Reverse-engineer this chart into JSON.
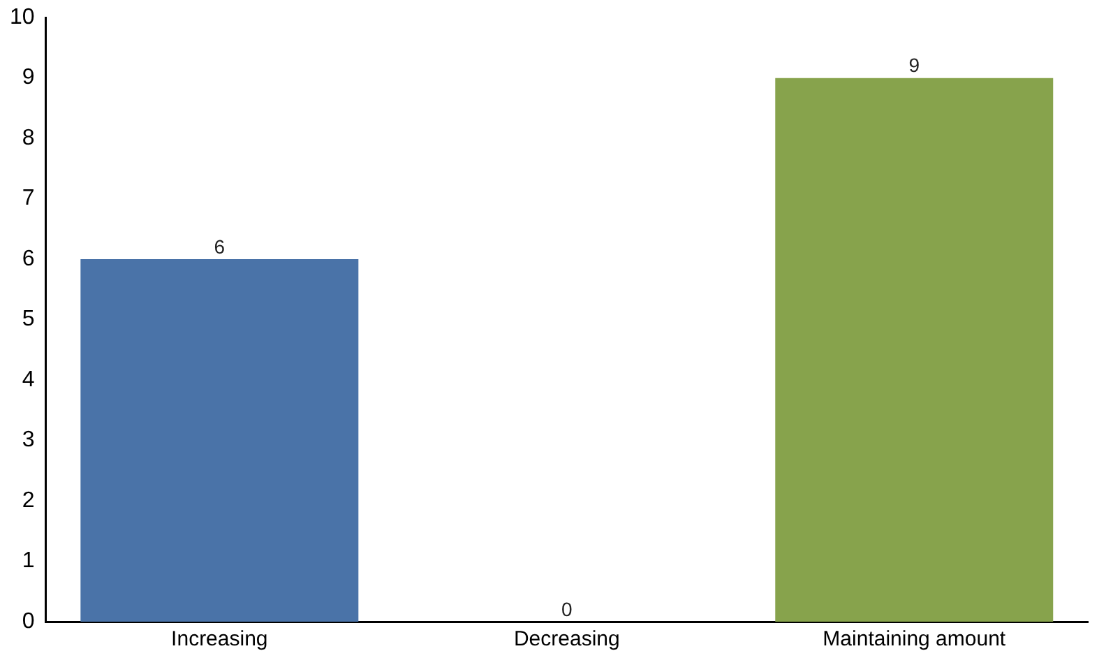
{
  "chart_data": {
    "type": "bar",
    "categories": [
      "Increasing",
      "Decreasing",
      "Maintaining amount"
    ],
    "values": [
      6,
      0,
      9
    ],
    "colors": [
      "#4a73a8",
      "#c0504d",
      "#87a34c"
    ],
    "ylim": [
      0,
      10
    ],
    "yticks": [
      0,
      1,
      2,
      3,
      4,
      5,
      6,
      7,
      8,
      9,
      10
    ],
    "grid": false,
    "legend": false,
    "data_labels": true
  }
}
